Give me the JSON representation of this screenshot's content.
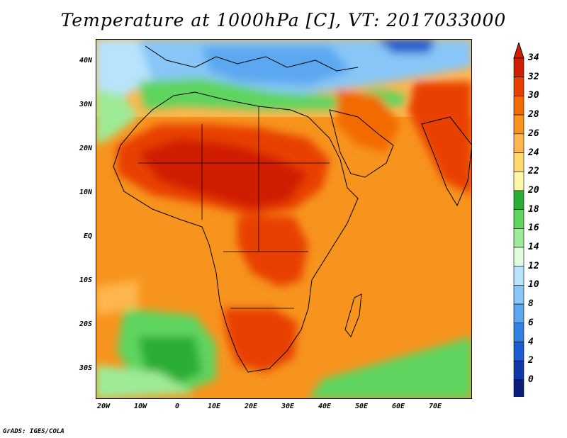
{
  "title": "Temperature at 1000hPa [C], VT: 2017033000",
  "credit": "GrADS: IGES/COLA",
  "lat_labels": [
    "40N",
    "30N",
    "20N",
    "10N",
    "EQ",
    "10S",
    "20S",
    "30S"
  ],
  "lon_labels": [
    "20W",
    "10W",
    "0",
    "10E",
    "20E",
    "30E",
    "40E",
    "50E",
    "60E",
    "70E"
  ],
  "colorbar": {
    "labels": [
      "34",
      "32",
      "30",
      "28",
      "26",
      "24",
      "22",
      "20",
      "18",
      "16",
      "14",
      "12",
      "10",
      "8",
      "6",
      "4",
      "2",
      "0"
    ],
    "colors": [
      "#d01e00",
      "#e83f00",
      "#f26a00",
      "#f7941d",
      "#fdb64e",
      "#ffd86e",
      "#fff7a8",
      "#2aae36",
      "#5fd45f",
      "#9fea96",
      "#dffce0",
      "#b7e3fb",
      "#87c6f6",
      "#5ba8f0",
      "#3282e5",
      "#1c5cd0",
      "#1138a8",
      "#0a1e7a"
    ],
    "over_color": "#d01e00",
    "under_color": "#d8d0f5"
  },
  "map_extent": {
    "lon_min": -23,
    "lon_max": 80,
    "lat_min": -37,
    "lat_max": 45
  }
}
